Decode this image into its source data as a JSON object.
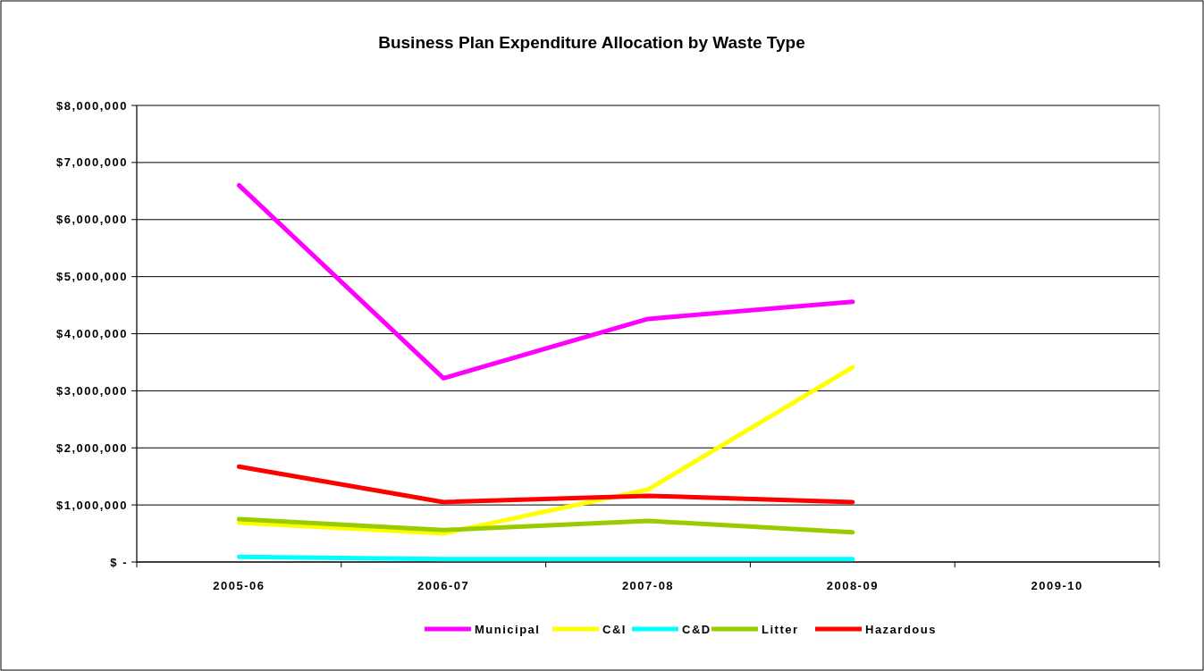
{
  "chart_data": {
    "type": "line",
    "title": "Business Plan Expenditure Allocation by Waste Type",
    "categories": [
      "2005-06",
      "2006-07",
      "2007-08",
      "2008-09",
      "2009-10"
    ],
    "series": [
      {
        "name": "Municipal",
        "color": "#ff00ff",
        "values": [
          6600000,
          3220000,
          4260000,
          4560000,
          null
        ]
      },
      {
        "name": "C&I",
        "color": "#ffff00",
        "values": [
          690000,
          500000,
          1270000,
          3410000,
          null
        ]
      },
      {
        "name": "C&D",
        "color": "#00ffff",
        "values": [
          90000,
          50000,
          50000,
          50000,
          null
        ]
      },
      {
        "name": "Litter",
        "color": "#99cc00",
        "values": [
          750000,
          560000,
          720000,
          520000,
          null
        ]
      },
      {
        "name": "Hazardous",
        "color": "#ff0000",
        "values": [
          1670000,
          1050000,
          1160000,
          1050000,
          null
        ]
      }
    ],
    "ylim": [
      0,
      8000000
    ],
    "yticks": [
      {
        "value": 0,
        "label": "$ -"
      },
      {
        "value": 1000000,
        "label": "$1,000,000"
      },
      {
        "value": 2000000,
        "label": "$2,000,000"
      },
      {
        "value": 3000000,
        "label": "$3,000,000"
      },
      {
        "value": 4000000,
        "label": "$4,000,000"
      },
      {
        "value": 5000000,
        "label": "$5,000,000"
      },
      {
        "value": 6000000,
        "label": "$6,000,000"
      },
      {
        "value": 7000000,
        "label": "$7,000,000"
      },
      {
        "value": 8000000,
        "label": "$8,000,000"
      }
    ],
    "grid": "y",
    "legend": "bottom",
    "marker": "none",
    "line_style": "solid"
  }
}
